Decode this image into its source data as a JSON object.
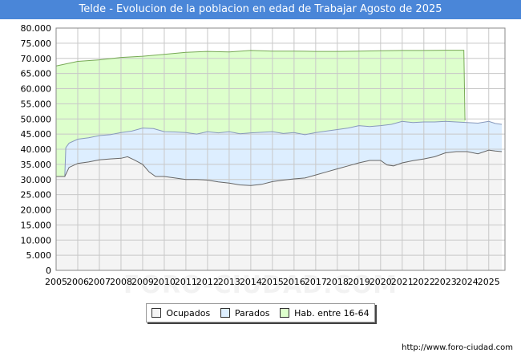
{
  "chart_data": {
    "type": "area",
    "title": "Telde - Evolucion de la poblacion en edad de Trabajar Agosto de 2025",
    "xlabel": "",
    "ylabel": "",
    "x_ticks": [
      "2005",
      "2006",
      "2007",
      "2008",
      "2009",
      "2010",
      "2011",
      "2012",
      "2013",
      "2014",
      "2015",
      "2016",
      "2017",
      "2018",
      "2019",
      "2020",
      "2021",
      "2022",
      "2023",
      "2024",
      "2025"
    ],
    "y_ticks": [
      "0",
      "5.000",
      "10.000",
      "15.000",
      "20.000",
      "25.000",
      "30.000",
      "35.000",
      "40.000",
      "45.000",
      "50.000",
      "55.000",
      "60.000",
      "65.000",
      "70.000",
      "75.000",
      "80.000"
    ],
    "xlim": [
      2005,
      2025.75
    ],
    "ylim": [
      0,
      80000
    ],
    "grid": true,
    "legend_position": "bottom",
    "series": [
      {
        "name": "Ocupados",
        "color": "#f4f4f4",
        "points": [
          [
            2005.0,
            31000
          ],
          [
            2005.4,
            31000
          ],
          [
            2005.6,
            34000
          ],
          [
            2006.0,
            35300
          ],
          [
            2006.5,
            35800
          ],
          [
            2007.0,
            36500
          ],
          [
            2007.5,
            36800
          ],
          [
            2008.0,
            37000
          ],
          [
            2008.3,
            37500
          ],
          [
            2008.6,
            36500
          ],
          [
            2009.0,
            35000
          ],
          [
            2009.3,
            32500
          ],
          [
            2009.6,
            31000
          ],
          [
            2010.0,
            31000
          ],
          [
            2010.5,
            30500
          ],
          [
            2011.0,
            30000
          ],
          [
            2011.5,
            30000
          ],
          [
            2012.0,
            29800
          ],
          [
            2012.5,
            29200
          ],
          [
            2013.0,
            28800
          ],
          [
            2013.5,
            28200
          ],
          [
            2014.0,
            28000
          ],
          [
            2014.5,
            28400
          ],
          [
            2015.0,
            29300
          ],
          [
            2015.5,
            29800
          ],
          [
            2016.0,
            30200
          ],
          [
            2016.5,
            30500
          ],
          [
            2017.0,
            31500
          ],
          [
            2017.5,
            32500
          ],
          [
            2018.0,
            33500
          ],
          [
            2018.5,
            34500
          ],
          [
            2019.0,
            35500
          ],
          [
            2019.5,
            36300
          ],
          [
            2020.0,
            36300
          ],
          [
            2020.3,
            34800
          ],
          [
            2020.6,
            34500
          ],
          [
            2021.0,
            35500
          ],
          [
            2021.5,
            36200
          ],
          [
            2022.0,
            36800
          ],
          [
            2022.5,
            37500
          ],
          [
            2023.0,
            38800
          ],
          [
            2023.5,
            39200
          ],
          [
            2024.0,
            39200
          ],
          [
            2024.5,
            38500
          ],
          [
            2025.0,
            39700
          ],
          [
            2025.3,
            39400
          ],
          [
            2025.6,
            39200
          ]
        ]
      },
      {
        "name": "Parados",
        "color": "#ddeeff",
        "points": [
          [
            2005.0,
            31000
          ],
          [
            2005.4,
            31000
          ],
          [
            2005.45,
            40500
          ],
          [
            2005.6,
            42000
          ],
          [
            2006.0,
            43300
          ],
          [
            2006.5,
            43800
          ],
          [
            2007.0,
            44500
          ],
          [
            2007.5,
            44800
          ],
          [
            2008.0,
            45500
          ],
          [
            2008.5,
            46000
          ],
          [
            2009.0,
            47000
          ],
          [
            2009.5,
            46800
          ],
          [
            2010.0,
            45800
          ],
          [
            2010.5,
            45700
          ],
          [
            2011.0,
            45500
          ],
          [
            2011.5,
            45000
          ],
          [
            2012.0,
            45800
          ],
          [
            2012.5,
            45400
          ],
          [
            2013.0,
            45800
          ],
          [
            2013.5,
            45100
          ],
          [
            2014.0,
            45400
          ],
          [
            2014.5,
            45600
          ],
          [
            2015.0,
            45800
          ],
          [
            2015.5,
            45200
          ],
          [
            2016.0,
            45500
          ],
          [
            2016.5,
            44800
          ],
          [
            2017.0,
            45500
          ],
          [
            2017.5,
            46000
          ],
          [
            2018.0,
            46500
          ],
          [
            2018.5,
            47000
          ],
          [
            2019.0,
            47800
          ],
          [
            2019.5,
            47500
          ],
          [
            2020.0,
            47800
          ],
          [
            2020.5,
            48200
          ],
          [
            2021.0,
            49200
          ],
          [
            2021.5,
            48800
          ],
          [
            2022.0,
            49000
          ],
          [
            2022.5,
            49000
          ],
          [
            2023.0,
            49200
          ],
          [
            2023.5,
            49000
          ],
          [
            2024.0,
            48800
          ],
          [
            2024.5,
            48600
          ],
          [
            2025.0,
            49200
          ],
          [
            2025.3,
            48500
          ],
          [
            2025.6,
            48200
          ]
        ]
      },
      {
        "name": "Hab. entre 16-64",
        "color": "#ddffcc",
        "points": [
          [
            2005.0,
            67500
          ],
          [
            2006.0,
            69000
          ],
          [
            2007.0,
            69500
          ],
          [
            2008.0,
            70300
          ],
          [
            2009.0,
            70700
          ],
          [
            2010.0,
            71300
          ],
          [
            2011.0,
            72000
          ],
          [
            2012.0,
            72300
          ],
          [
            2013.0,
            72100
          ],
          [
            2014.0,
            72600
          ],
          [
            2015.0,
            72400
          ],
          [
            2016.0,
            72400
          ],
          [
            2017.0,
            72300
          ],
          [
            2018.0,
            72300
          ],
          [
            2019.0,
            72400
          ],
          [
            2020.0,
            72500
          ],
          [
            2021.0,
            72600
          ],
          [
            2022.0,
            72600
          ],
          [
            2023.0,
            72700
          ],
          [
            2023.85,
            72700
          ],
          [
            2023.9,
            49500
          ]
        ]
      }
    ]
  },
  "legend": {
    "items": [
      {
        "label": "Ocupados",
        "color": "#f4f4f4"
      },
      {
        "label": "Parados",
        "color": "#ddeeff"
      },
      {
        "label": "Hab. entre 16-64",
        "color": "#ddffcc"
      }
    ]
  },
  "watermark": "FORO-CIUDAD.COM",
  "source_url": "http://www.foro-ciudad.com"
}
